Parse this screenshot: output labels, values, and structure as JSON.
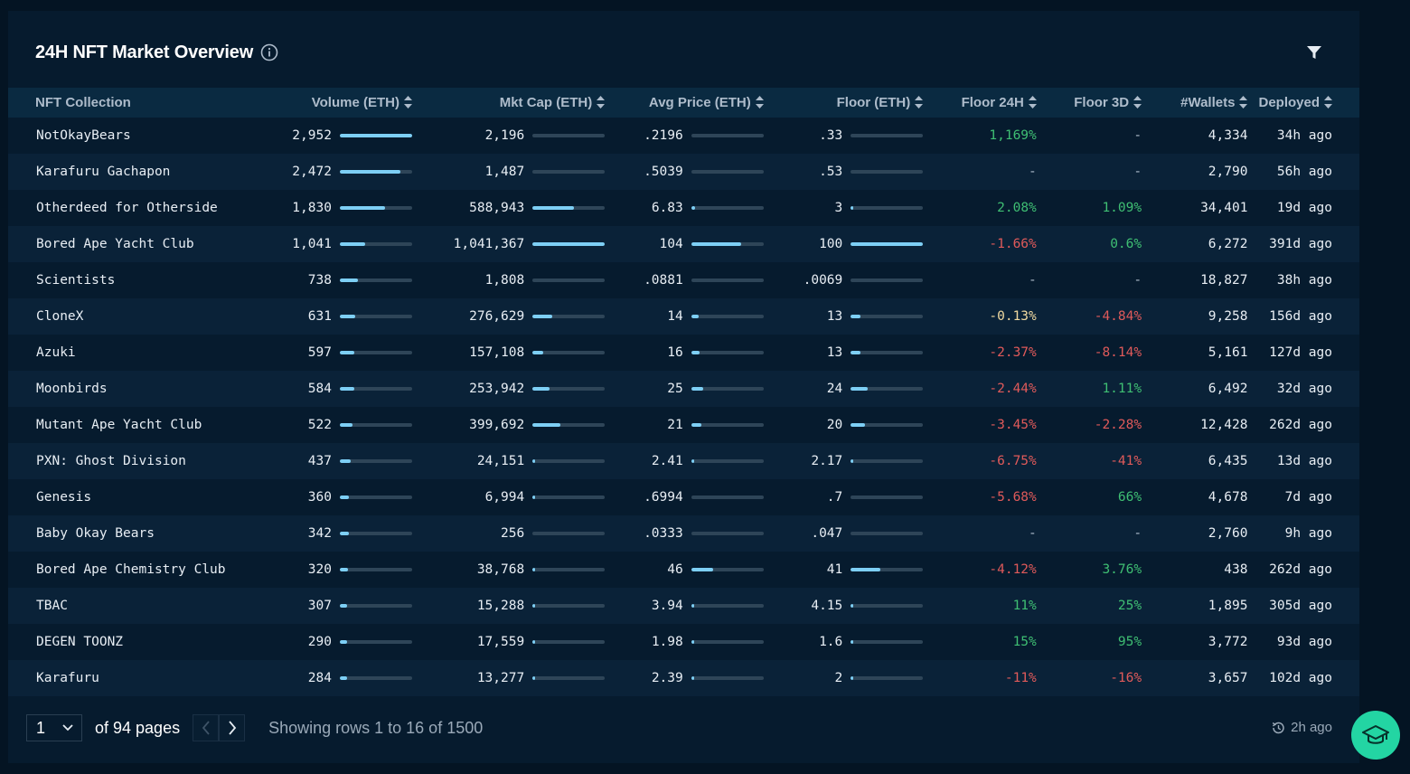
{
  "header": {
    "title": "24H NFT Market Overview",
    "info_icon": "info-icon",
    "filter_icon": "filter-icon"
  },
  "table": {
    "columns": [
      "NFT Collection",
      "Volume (ETH)",
      "Mkt Cap (ETH)",
      "Avg Price (ETH)",
      "Floor (ETH)",
      "Floor 24H",
      "Floor 3D",
      "#Wallets",
      "Deployed"
    ],
    "rows": [
      {
        "name": "NotOkayBears",
        "volume": "2,952",
        "volume_pct": 1.0,
        "mktcap": "2,196",
        "mktcap_pct": 0.0,
        "avg": ".2196",
        "avg_pct": 0.0,
        "floor": ".33",
        "floor_pct": 0.0,
        "f24": "1,169%",
        "f24_trend": "pos",
        "f3d": "-",
        "f3d_trend": "dash",
        "wallets": "4,334",
        "deployed": "34h ago"
      },
      {
        "name": "Karafuru Gachapon",
        "volume": "2,472",
        "volume_pct": 0.84,
        "mktcap": "1,487",
        "mktcap_pct": 0.0,
        "avg": ".5039",
        "avg_pct": 0.0,
        "floor": ".53",
        "floor_pct": 0.0,
        "f24": "-",
        "f24_trend": "dash",
        "f3d": "-",
        "f3d_trend": "dash",
        "wallets": "2,790",
        "deployed": "56h ago"
      },
      {
        "name": "Otherdeed for Otherside",
        "volume": "1,830",
        "volume_pct": 0.62,
        "mktcap": "588,943",
        "mktcap_pct": 0.57,
        "avg": "6.83",
        "avg_pct": 0.05,
        "floor": "3",
        "floor_pct": 0.02,
        "f24": "2.08%",
        "f24_trend": "pos",
        "f3d": "1.09%",
        "f3d_trend": "pos",
        "wallets": "34,401",
        "deployed": "19d ago"
      },
      {
        "name": "Bored Ape Yacht Club",
        "volume": "1,041",
        "volume_pct": 0.35,
        "mktcap": "1,041,367",
        "mktcap_pct": 1.0,
        "avg": "104",
        "avg_pct": 0.69,
        "floor": "100",
        "floor_pct": 1.0,
        "f24": "-1.66%",
        "f24_trend": "neg",
        "f3d": "0.6%",
        "f3d_trend": "pos",
        "wallets": "6,272",
        "deployed": "391d ago"
      },
      {
        "name": "Scientists",
        "volume": "738",
        "volume_pct": 0.25,
        "mktcap": "1,808",
        "mktcap_pct": 0.0,
        "avg": ".0881",
        "avg_pct": 0.0,
        "floor": ".0069",
        "floor_pct": 0.0,
        "f24": "-",
        "f24_trend": "dash",
        "f3d": "-",
        "f3d_trend": "dash",
        "wallets": "18,827",
        "deployed": "38h ago"
      },
      {
        "name": "CloneX",
        "volume": "631",
        "volume_pct": 0.21,
        "mktcap": "276,629",
        "mktcap_pct": 0.27,
        "avg": "14",
        "avg_pct": 0.1,
        "floor": "13",
        "floor_pct": 0.13,
        "f24": "-0.13%",
        "f24_trend": "neu",
        "f3d": "-4.84%",
        "f3d_trend": "neg",
        "wallets": "9,258",
        "deployed": "156d ago"
      },
      {
        "name": "Azuki",
        "volume": "597",
        "volume_pct": 0.2,
        "mktcap": "157,108",
        "mktcap_pct": 0.15,
        "avg": "16",
        "avg_pct": 0.11,
        "floor": "13",
        "floor_pct": 0.13,
        "f24": "-2.37%",
        "f24_trend": "neg",
        "f3d": "-8.14%",
        "f3d_trend": "neg",
        "wallets": "5,161",
        "deployed": "127d ago"
      },
      {
        "name": "Moonbirds",
        "volume": "584",
        "volume_pct": 0.2,
        "mktcap": "253,942",
        "mktcap_pct": 0.24,
        "avg": "25",
        "avg_pct": 0.17,
        "floor": "24",
        "floor_pct": 0.24,
        "f24": "-2.44%",
        "f24_trend": "neg",
        "f3d": "1.11%",
        "f3d_trend": "pos",
        "wallets": "6,492",
        "deployed": "32d ago"
      },
      {
        "name": "Mutant Ape Yacht Club",
        "volume": "522",
        "volume_pct": 0.18,
        "mktcap": "399,692",
        "mktcap_pct": 0.38,
        "avg": "21",
        "avg_pct": 0.14,
        "floor": "20",
        "floor_pct": 0.2,
        "f24": "-3.45%",
        "f24_trend": "neg",
        "f3d": "-2.28%",
        "f3d_trend": "neg",
        "wallets": "12,428",
        "deployed": "262d ago"
      },
      {
        "name": "PXN: Ghost Division",
        "volume": "437",
        "volume_pct": 0.15,
        "mktcap": "24,151",
        "mktcap_pct": 0.02,
        "avg": "2.41",
        "avg_pct": 0.02,
        "floor": "2.17",
        "floor_pct": 0.02,
        "f24": "-6.75%",
        "f24_trend": "neg",
        "f3d": "-41%",
        "f3d_trend": "neg",
        "wallets": "6,435",
        "deployed": "13d ago"
      },
      {
        "name": "Genesis",
        "volume": "360",
        "volume_pct": 0.12,
        "mktcap": "6,994",
        "mktcap_pct": 0.01,
        "avg": ".6994",
        "avg_pct": 0.0,
        "floor": ".7",
        "floor_pct": 0.0,
        "f24": "-5.68%",
        "f24_trend": "neg",
        "f3d": "66%",
        "f3d_trend": "pos",
        "wallets": "4,678",
        "deployed": "7d ago"
      },
      {
        "name": "Baby Okay Bears",
        "volume": "342",
        "volume_pct": 0.12,
        "mktcap": "256",
        "mktcap_pct": 0.0,
        "avg": ".0333",
        "avg_pct": 0.0,
        "floor": ".047",
        "floor_pct": 0.0,
        "f24": "-",
        "f24_trend": "dash",
        "f3d": "-",
        "f3d_trend": "dash",
        "wallets": "2,760",
        "deployed": "9h ago"
      },
      {
        "name": "Bored Ape Chemistry Club",
        "volume": "320",
        "volume_pct": 0.11,
        "mktcap": "38,768",
        "mktcap_pct": 0.04,
        "avg": "46",
        "avg_pct": 0.3,
        "floor": "41",
        "floor_pct": 0.41,
        "f24": "-4.12%",
        "f24_trend": "neg",
        "f3d": "3.76%",
        "f3d_trend": "pos",
        "wallets": "438",
        "deployed": "262d ago"
      },
      {
        "name": "TBAC",
        "volume": "307",
        "volume_pct": 0.1,
        "mktcap": "15,288",
        "mktcap_pct": 0.01,
        "avg": "3.94",
        "avg_pct": 0.03,
        "floor": "4.15",
        "floor_pct": 0.04,
        "f24": "11%",
        "f24_trend": "pos",
        "f3d": "25%",
        "f3d_trend": "pos",
        "wallets": "1,895",
        "deployed": "305d ago"
      },
      {
        "name": "DEGEN TOONZ",
        "volume": "290",
        "volume_pct": 0.1,
        "mktcap": "17,559",
        "mktcap_pct": 0.02,
        "avg": "1.98",
        "avg_pct": 0.01,
        "floor": "1.6",
        "floor_pct": 0.02,
        "f24": "15%",
        "f24_trend": "pos",
        "f3d": "95%",
        "f3d_trend": "pos",
        "wallets": "3,772",
        "deployed": "93d ago"
      },
      {
        "name": "Karafuru",
        "volume": "284",
        "volume_pct": 0.1,
        "mktcap": "13,277",
        "mktcap_pct": 0.01,
        "avg": "2.39",
        "avg_pct": 0.02,
        "floor": "2",
        "floor_pct": 0.02,
        "f24": "-11%",
        "f24_trend": "neg",
        "f3d": "-16%",
        "f3d_trend": "neg",
        "wallets": "3,657",
        "deployed": "102d ago"
      }
    ]
  },
  "footer": {
    "page_value": "1",
    "of_pages": "of 94 pages",
    "showing": "Showing rows 1 to 16 of 1500",
    "updated": "2h ago"
  },
  "colors": {
    "background": "#041423",
    "panel": "#061b2e",
    "bar_fill": "#7dcff5",
    "positive": "#3fbf73",
    "negative": "#e05a5a",
    "accent_button": "#23d5a3"
  }
}
